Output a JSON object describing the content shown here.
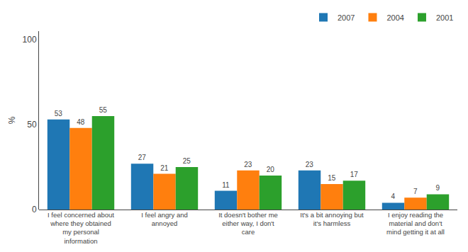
{
  "chart_data": {
    "type": "bar",
    "categories": [
      "I feel concerned about\nwhere they obtained\nmy personal\ninformation",
      "I feel angry and\nannoyed",
      "It doesn't bother me\neither way, I don't\ncare",
      "It's a bit annoying but\nit's harmless",
      "I enjoy reading the\nmaterial and don't\nmind getting it at all"
    ],
    "series": [
      {
        "name": "2007",
        "values": [
          53,
          27,
          11,
          23,
          4
        ]
      },
      {
        "name": "2004",
        "values": [
          48,
          21,
          23,
          15,
          7
        ]
      },
      {
        "name": "2001",
        "values": [
          55,
          25,
          20,
          17,
          9
        ]
      }
    ],
    "ylabel": "%",
    "ylim": [
      0,
      105
    ],
    "yticks": [
      0,
      50,
      100
    ],
    "grid": false,
    "legend": "upper right",
    "data_labels": true
  }
}
